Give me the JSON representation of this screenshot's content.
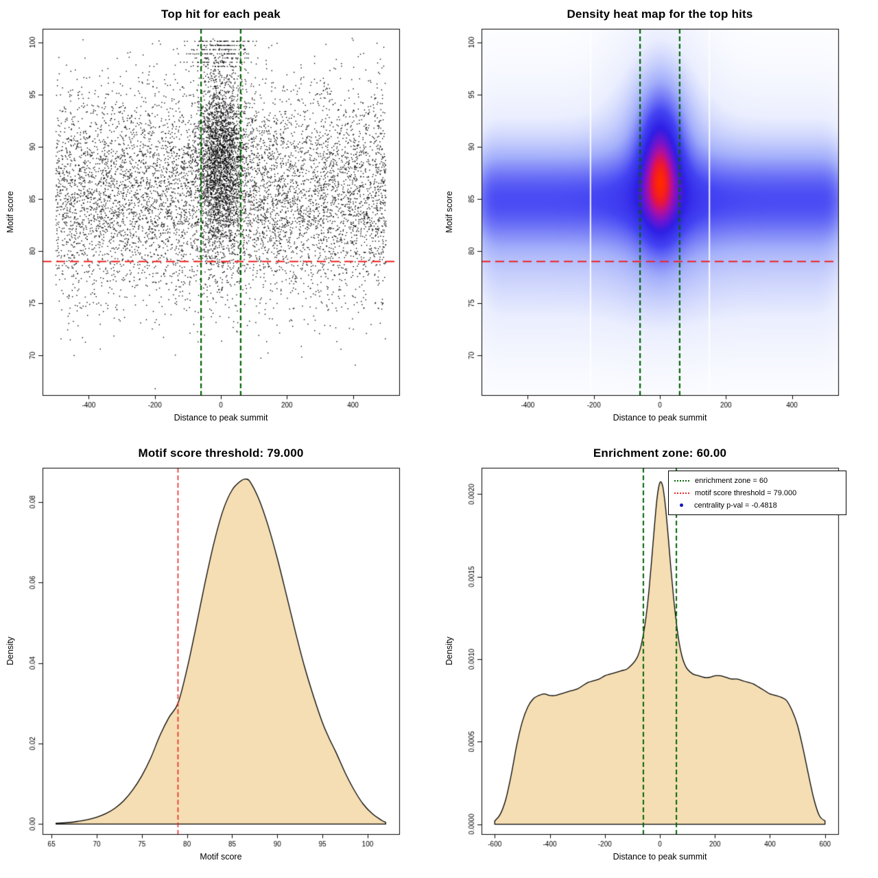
{
  "figure": {
    "background": "#ffffff",
    "colors": {
      "points": "#000000",
      "density_fill": "#f5deb3",
      "threshold_red": "#ee2222",
      "zone_green": "#006400",
      "legend_dot_blue": "#1414b8"
    }
  },
  "chart_data": [
    {
      "type": "scatter",
      "title": "Top hit for each peak",
      "xlabel": "Distance to peak summit",
      "ylabel": "Motif score",
      "xlim": [
        -540,
        540
      ],
      "ylim": [
        66.2,
        101.3
      ],
      "xticks": [
        -400,
        -200,
        0,
        200,
        400
      ],
      "x_tick_labels": [
        "-400",
        "-200",
        "0",
        "200",
        "400"
      ],
      "yticks": [
        70,
        75,
        80,
        85,
        90,
        95,
        100
      ],
      "y_tick_labels": [
        "70",
        "75",
        "80",
        "85",
        "90",
        "95",
        "100"
      ],
      "hlines": [
        {
          "y": 79,
          "color": "#ee2222",
          "style": "longdash",
          "width": 2
        }
      ],
      "vlines": [
        {
          "x": -60,
          "color": "#006400",
          "style": "dashed",
          "width": 2.2
        },
        {
          "x": 60,
          "color": "#006400",
          "style": "dashed",
          "width": 2.2
        }
      ],
      "points_model": {
        "seed": 42,
        "point_color": "#000000",
        "background": {
          "n": 7200,
          "x_range": [
            -500,
            500
          ],
          "y_mean": 85.4,
          "y_sd": 5.1
        },
        "cluster": {
          "n": 2600,
          "x_mean": 0,
          "x_sd": 38,
          "y_mean": 89,
          "y_sd": 4.2
        },
        "top_streaks": {
          "n": 240,
          "x_sd": 55,
          "y_values": [
            97.7,
            98.1,
            98.5,
            98.9,
            99.3,
            99.7,
            100.1
          ]
        },
        "y_clip": [
          66.8,
          100.4
        ]
      }
    },
    {
      "type": "heatmap",
      "title": "Density heat map for the top hits",
      "xlabel": "Distance to peak summit",
      "ylabel": "Motif score",
      "xlim": [
        -540,
        540
      ],
      "ylim": [
        66.2,
        101.3
      ],
      "xticks": [
        -400,
        -200,
        0,
        200,
        400
      ],
      "x_tick_labels": [
        "-400",
        "-200",
        "0",
        "200",
        "400"
      ],
      "yticks": [
        70,
        75,
        80,
        85,
        90,
        95,
        100
      ],
      "y_tick_labels": [
        "70",
        "75",
        "80",
        "85",
        "90",
        "95",
        "100"
      ],
      "hlines": [
        {
          "y": 79,
          "color": "#ee2222",
          "style": "longdash",
          "width": 1.8
        }
      ],
      "vlines": [
        {
          "x": -60,
          "color": "#006400",
          "style": "dashed",
          "width": 2.2
        },
        {
          "x": 60,
          "color": "#006400",
          "style": "dashed",
          "width": 2.2
        }
      ],
      "gap_lines_x": [
        -210,
        150
      ],
      "density_model": {
        "gamma": 0.6,
        "components": [
          {
            "amp": 1.0,
            "x": {
              "type": "gauss",
              "mu": 3,
              "sigma": 45
            },
            "y": {
              "mu": 88,
              "sigma": 4.5
            }
          },
          {
            "amp": 0.5,
            "x": {
              "type": "gauss",
              "mu": 0,
              "sigma": 27
            },
            "y": {
              "mu": 87,
              "sigma": 2.8
            }
          },
          {
            "amp": 0.5,
            "x": {
              "type": "plateau",
              "a": -500,
              "b": 500,
              "edge": 55
            },
            "y": {
              "mu": 85,
              "sigma": 2.7
            }
          },
          {
            "amp": 0.26,
            "x": {
              "type": "plateau",
              "a": -480,
              "b": 480,
              "edge": 70
            },
            "y": {
              "mu": 84.5,
              "sigma": 5.5
            }
          },
          {
            "amp": 0.3,
            "x": {
              "type": "gauss",
              "mu": 0,
              "sigma": 95
            },
            "y": {
              "mu": 88,
              "sigma": 7
            }
          },
          {
            "amp": 0.07,
            "x": {
              "type": "plateau",
              "a": -460,
              "b": 460,
              "edge": 80
            },
            "y": {
              "mu": 77,
              "sigma": 4.5
            }
          }
        ],
        "colormap": [
          {
            "t": 0.0,
            "color": "#ffffff"
          },
          {
            "t": 0.14,
            "color": "#eaeefe"
          },
          {
            "t": 0.32,
            "color": "#a2aefa"
          },
          {
            "t": 0.52,
            "color": "#4444f3"
          },
          {
            "t": 0.66,
            "color": "#2d1ee4"
          },
          {
            "t": 0.77,
            "color": "#6f14cf"
          },
          {
            "t": 0.86,
            "color": "#b50f9a"
          },
          {
            "t": 0.93,
            "color": "#e8143c"
          },
          {
            "t": 1.0,
            "color": "#ff2a00"
          }
        ]
      }
    },
    {
      "type": "density",
      "title": "Motif score threshold: 79.000",
      "xlabel": "Motif score",
      "ylabel": "Density",
      "xlim": [
        64,
        103.5
      ],
      "ylim": [
        -0.0025,
        0.0885
      ],
      "xticks": [
        65,
        70,
        75,
        80,
        85,
        90,
        95,
        100
      ],
      "x_tick_labels": [
        "65",
        "70",
        "75",
        "80",
        "85",
        "90",
        "95",
        "100"
      ],
      "yticks": [
        0,
        0.02,
        0.04,
        0.06,
        0.08
      ],
      "y_tick_labels": [
        "0.00",
        "0.02",
        "0.04",
        "0.06",
        "0.08"
      ],
      "fill_color": "#f5deb3",
      "line_color": "#000000",
      "vlines": [
        {
          "x": 79,
          "color": "#ee2222",
          "style": "dashed",
          "width": 1.6
        }
      ],
      "curve": {
        "x": [
          65.5,
          67,
          68,
          69,
          70,
          71,
          72,
          73,
          74,
          75,
          76,
          77,
          78,
          79,
          80,
          81,
          82,
          83,
          84,
          85,
          86,
          86.5,
          87,
          88,
          89,
          90,
          91,
          92,
          93,
          94,
          95,
          95.7,
          96.5,
          97.5,
          98.5,
          99.5,
          100.5,
          101.5,
          102
        ],
        "y": [
          0.0002,
          0.0004,
          0.0007,
          0.0011,
          0.0017,
          0.0026,
          0.0039,
          0.0058,
          0.0085,
          0.012,
          0.0165,
          0.022,
          0.0265,
          0.03,
          0.0385,
          0.049,
          0.06,
          0.07,
          0.078,
          0.083,
          0.0853,
          0.0857,
          0.085,
          0.0805,
          0.074,
          0.066,
          0.057,
          0.0478,
          0.0392,
          0.0318,
          0.0252,
          0.0215,
          0.0178,
          0.0128,
          0.0085,
          0.005,
          0.0026,
          0.001,
          0.0004
        ]
      }
    },
    {
      "type": "density",
      "title": "Enrichment zone: 60.00",
      "xlabel": "Distance to peak summit",
      "ylabel": "Density",
      "xlim": [
        -648,
        648
      ],
      "ylim": [
        -6e-05,
        0.00216
      ],
      "xticks": [
        -600,
        -400,
        -200,
        0,
        200,
        400,
        600
      ],
      "x_tick_labels": [
        "-600",
        "-400",
        "-200",
        "0",
        "200",
        "400",
        "600"
      ],
      "yticks": [
        0,
        0.0005,
        0.001,
        0.0015,
        0.002
      ],
      "y_tick_labels": [
        "0.0000",
        "0.0005",
        "0.0010",
        "0.0015",
        "0.0020"
      ],
      "fill_color": "#f5deb3",
      "line_color": "#000000",
      "vlines": [
        {
          "x": -60,
          "color": "#006400",
          "style": "dashed",
          "width": 2
        },
        {
          "x": 60,
          "color": "#006400",
          "style": "dashed",
          "width": 2
        }
      ],
      "curve": {
        "x": [
          -600,
          -580,
          -560,
          -540,
          -520,
          -500,
          -480,
          -460,
          -440,
          -420,
          -400,
          -380,
          -360,
          -340,
          -320,
          -300,
          -280,
          -260,
          -240,
          -220,
          -200,
          -180,
          -160,
          -140,
          -120,
          -100,
          -90,
          -80,
          -70,
          -60,
          -50,
          -40,
          -30,
          -20,
          -10,
          0,
          10,
          20,
          30,
          40,
          50,
          60,
          70,
          80,
          90,
          100,
          120,
          140,
          160,
          180,
          200,
          220,
          240,
          260,
          280,
          300,
          320,
          340,
          360,
          380,
          400,
          420,
          440,
          460,
          480,
          500,
          520,
          540,
          560,
          580,
          600
        ],
        "y": [
          2e-05,
          6e-05,
          0.00015,
          0.0003,
          0.00048,
          0.00062,
          0.00071,
          0.00076,
          0.00078,
          0.00079,
          0.00078,
          0.00078,
          0.00079,
          0.0008,
          0.00081,
          0.00082,
          0.00084,
          0.00086,
          0.00087,
          0.00088,
          0.0009,
          0.00091,
          0.00092,
          0.00093,
          0.00094,
          0.00097,
          0.00099,
          0.00102,
          0.00107,
          0.00115,
          0.00126,
          0.00141,
          0.0016,
          0.0018,
          0.00198,
          0.00207,
          0.00205,
          0.00193,
          0.00175,
          0.00155,
          0.00137,
          0.00122,
          0.0011,
          0.00102,
          0.00097,
          0.00094,
          0.00091,
          0.0009,
          0.00089,
          0.00089,
          0.0009,
          0.0009,
          0.00089,
          0.00088,
          0.00088,
          0.00087,
          0.00086,
          0.00085,
          0.00083,
          0.00081,
          0.00079,
          0.00078,
          0.00077,
          0.00075,
          0.00069,
          0.0006,
          0.00046,
          0.0003,
          0.00015,
          5e-05,
          2e-05
        ]
      },
      "legend": {
        "items": [
          {
            "label": "enrichment zone = 60",
            "marker": "line",
            "color": "#006400"
          },
          {
            "label": "motif score threshold = 79.000",
            "marker": "line",
            "color": "#ee2222"
          },
          {
            "label": "centrality p-val = -0.4818",
            "marker": "point",
            "color": "#1414b8"
          }
        ]
      }
    }
  ]
}
